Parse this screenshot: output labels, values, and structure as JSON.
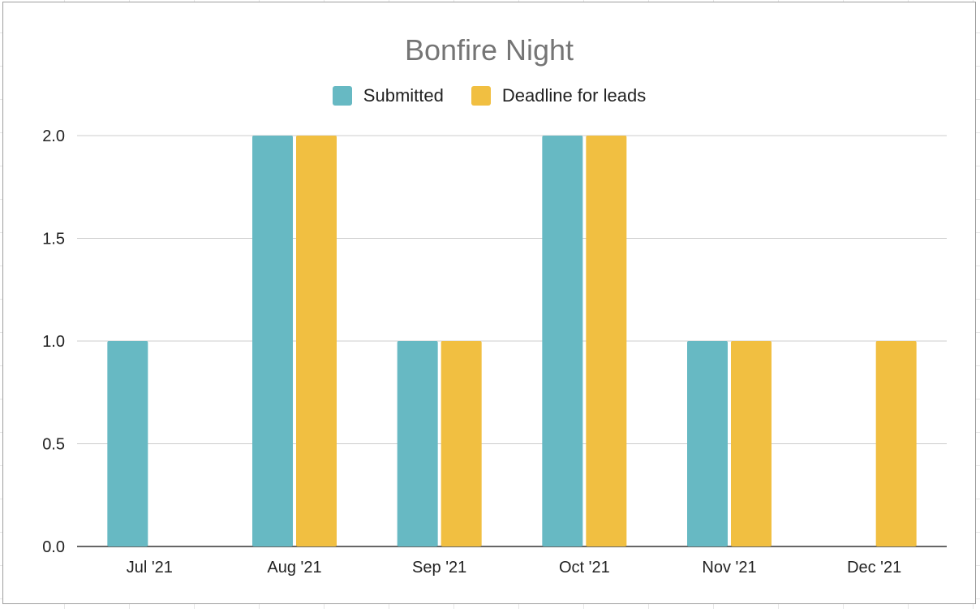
{
  "chart_data": {
    "type": "bar",
    "title": "Bonfire Night",
    "categories": [
      "Jul '21",
      "Aug '21",
      "Sep '21",
      "Oct '21",
      "Nov '21",
      "Dec '21"
    ],
    "series": [
      {
        "name": "Submitted",
        "color": "#67b9c3",
        "values": [
          1,
          2,
          1,
          2,
          1,
          0
        ]
      },
      {
        "name": "Deadline for leads",
        "color": "#f1bf41",
        "values": [
          0,
          2,
          1,
          2,
          1,
          1
        ]
      }
    ],
    "yticks": [
      "2.0",
      "1.5",
      "1.0",
      "0.5",
      "0.0"
    ],
    "ylim": [
      0,
      2
    ],
    "grid": true,
    "legend_position": "top"
  }
}
